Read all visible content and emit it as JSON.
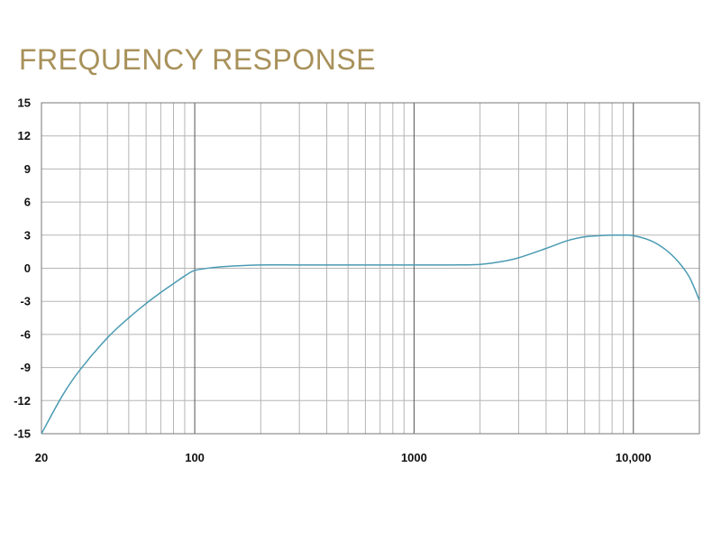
{
  "chart_data": {
    "type": "line",
    "title": "FREQUENCY RESPONSE",
    "xlabel": "",
    "ylabel": "",
    "x_scale": "log",
    "xlim": [
      20,
      20000
    ],
    "ylim": [
      -15,
      15
    ],
    "grid": true,
    "x_ticks": [
      {
        "value": 20,
        "label": "20"
      },
      {
        "value": 100,
        "label": "100"
      },
      {
        "value": 1000,
        "label": "1000"
      },
      {
        "value": 10000,
        "label": "10,000"
      }
    ],
    "y_ticks": [
      {
        "value": 15,
        "label": "15"
      },
      {
        "value": 12,
        "label": "12"
      },
      {
        "value": 9,
        "label": "9"
      },
      {
        "value": 6,
        "label": "6"
      },
      {
        "value": 3,
        "label": "3"
      },
      {
        "value": 0,
        "label": "0"
      },
      {
        "value": -3,
        "label": "-3"
      },
      {
        "value": -6,
        "label": "-6"
      },
      {
        "value": -9,
        "label": "-9"
      },
      {
        "value": -12,
        "label": "-12"
      },
      {
        "value": -15,
        "label": "-15"
      }
    ],
    "colors": {
      "title": "#a8915a",
      "line": "#4a9bb3",
      "grid_minor": "#b5b5b5",
      "grid_major": "#555555",
      "frame": "#777777"
    },
    "series": [
      {
        "x": [
          20,
          25,
          30,
          40,
          50,
          60,
          70,
          80,
          90,
          100,
          120,
          150,
          200,
          300,
          500,
          1000,
          1500,
          2000,
          2500,
          3000,
          4000,
          5000,
          6000,
          7000,
          8000,
          9000,
          10000,
          12000,
          14000,
          16000,
          18000,
          20000
        ],
        "y": [
          -15,
          -11.5,
          -9.2,
          -6.3,
          -4.5,
          -3.2,
          -2.2,
          -1.4,
          -0.7,
          -0.2,
          0.05,
          0.2,
          0.3,
          0.3,
          0.3,
          0.3,
          0.3,
          0.35,
          0.6,
          0.95,
          1.8,
          2.5,
          2.85,
          2.95,
          3.0,
          3.0,
          2.95,
          2.5,
          1.7,
          0.6,
          -0.8,
          -2.9
        ]
      }
    ]
  }
}
